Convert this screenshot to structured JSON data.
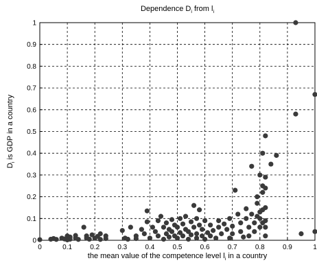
{
  "chart_data": {
    "type": "scatter",
    "title": {
      "main": "Dependence D",
      "sub1": "i",
      "mid": " from l",
      "sub2": "i"
    },
    "xlabel": {
      "pre": "the mean value of the competence level l",
      "sub": "i",
      "post": " in a country"
    },
    "ylabel": {
      "pre": "D",
      "sub": "i",
      "post": " is GDP in a country"
    },
    "xlim": [
      0,
      1
    ],
    "ylim": [
      0,
      1
    ],
    "grid": true,
    "xticks": [
      "0",
      "0.1",
      "0.2",
      "0.3",
      "0.4",
      "0.5",
      "0.6",
      "0.7",
      "0.8",
      "0.9",
      "1"
    ],
    "yticks": [
      "0",
      "0.1",
      "0.2",
      "0.3",
      "0.4",
      "0.5",
      "0.6",
      "0.7",
      "0.8",
      "0.9",
      "1"
    ],
    "marker_color": "#3a3a3a",
    "points": [
      [
        0.0,
        0.003
      ],
      [
        0.04,
        0.005
      ],
      [
        0.05,
        0.008
      ],
      [
        0.06,
        0.004
      ],
      [
        0.08,
        0.01
      ],
      [
        0.09,
        0.006
      ],
      [
        0.1,
        0.02
      ],
      [
        0.1,
        0.002
      ],
      [
        0.11,
        0.015
      ],
      [
        0.11,
        0.005
      ],
      [
        0.13,
        0.01
      ],
      [
        0.13,
        0.022
      ],
      [
        0.14,
        0.004
      ],
      [
        0.16,
        0.06
      ],
      [
        0.17,
        0.02
      ],
      [
        0.17,
        0.01
      ],
      [
        0.18,
        0.005
      ],
      [
        0.19,
        0.025
      ],
      [
        0.2,
        0.01
      ],
      [
        0.21,
        0.018
      ],
      [
        0.22,
        0.004
      ],
      [
        0.22,
        0.03
      ],
      [
        0.24,
        0.008
      ],
      [
        0.24,
        0.02
      ],
      [
        0.3,
        0.045
      ],
      [
        0.31,
        0.01
      ],
      [
        0.32,
        0.005
      ],
      [
        0.33,
        0.06
      ],
      [
        0.35,
        0.02
      ],
      [
        0.35,
        0.008
      ],
      [
        0.37,
        0.05
      ],
      [
        0.38,
        0.03
      ],
      [
        0.39,
        0.085
      ],
      [
        0.39,
        0.135
      ],
      [
        0.4,
        0.01
      ],
      [
        0.41,
        0.06
      ],
      [
        0.42,
        0.04
      ],
      [
        0.43,
        0.02
      ],
      [
        0.43,
        0.09
      ],
      [
        0.44,
        0.11
      ],
      [
        0.45,
        0.005
      ],
      [
        0.45,
        0.06
      ],
      [
        0.46,
        0.03
      ],
      [
        0.46,
        0.08
      ],
      [
        0.47,
        0.015
      ],
      [
        0.47,
        0.05
      ],
      [
        0.48,
        0.095
      ],
      [
        0.48,
        0.04
      ],
      [
        0.49,
        0.07
      ],
      [
        0.49,
        0.02
      ],
      [
        0.5,
        0.01
      ],
      [
        0.5,
        0.06
      ],
      [
        0.51,
        0.035
      ],
      [
        0.51,
        0.1
      ],
      [
        0.52,
        0.075
      ],
      [
        0.52,
        0.02
      ],
      [
        0.53,
        0.05
      ],
      [
        0.53,
        0.11
      ],
      [
        0.54,
        0.04
      ],
      [
        0.54,
        0.005
      ],
      [
        0.55,
        0.085
      ],
      [
        0.55,
        0.025
      ],
      [
        0.56,
        0.16
      ],
      [
        0.56,
        0.06
      ],
      [
        0.57,
        0.01
      ],
      [
        0.57,
        0.03
      ],
      [
        0.57,
        0.1
      ],
      [
        0.58,
        0.07
      ],
      [
        0.58,
        0.14
      ],
      [
        0.59,
        0.02
      ],
      [
        0.59,
        0.05
      ],
      [
        0.6,
        0.09
      ],
      [
        0.6,
        0.005
      ],
      [
        0.61,
        0.035
      ],
      [
        0.62,
        0.07
      ],
      [
        0.62,
        0.02
      ],
      [
        0.63,
        0.045
      ],
      [
        0.64,
        0.01
      ],
      [
        0.65,
        0.09
      ],
      [
        0.65,
        0.06
      ],
      [
        0.66,
        0.03
      ],
      [
        0.67,
        0.075
      ],
      [
        0.68,
        0.05
      ],
      [
        0.69,
        0.01
      ],
      [
        0.69,
        0.1
      ],
      [
        0.7,
        0.065
      ],
      [
        0.7,
        0.03
      ],
      [
        0.71,
        0.23
      ],
      [
        0.72,
        0.12
      ],
      [
        0.73,
        0.08
      ],
      [
        0.73,
        0.04
      ],
      [
        0.74,
        0.015
      ],
      [
        0.75,
        0.1
      ],
      [
        0.75,
        0.145
      ],
      [
        0.76,
        0.06
      ],
      [
        0.76,
        0.02
      ],
      [
        0.77,
        0.12
      ],
      [
        0.77,
        0.34
      ],
      [
        0.78,
        0.08
      ],
      [
        0.78,
        0.04
      ],
      [
        0.79,
        0.17
      ],
      [
        0.79,
        0.2
      ],
      [
        0.79,
        0.11
      ],
      [
        0.8,
        0.06
      ],
      [
        0.8,
        0.1
      ],
      [
        0.8,
        0.13
      ],
      [
        0.8,
        0.3
      ],
      [
        0.81,
        0.4
      ],
      [
        0.81,
        0.25
      ],
      [
        0.81,
        0.22
      ],
      [
        0.81,
        0.14
      ],
      [
        0.81,
        0.08
      ],
      [
        0.82,
        0.48
      ],
      [
        0.82,
        0.29
      ],
      [
        0.82,
        0.24
      ],
      [
        0.82,
        0.15
      ],
      [
        0.82,
        0.09
      ],
      [
        0.82,
        0.06
      ],
      [
        0.82,
        0.02
      ],
      [
        0.84,
        0.35
      ],
      [
        0.86,
        0.39
      ],
      [
        0.93,
        1.0
      ],
      [
        0.93,
        0.58
      ],
      [
        0.95,
        0.03
      ],
      [
        1.0,
        0.67
      ],
      [
        1.0,
        0.04
      ]
    ]
  }
}
